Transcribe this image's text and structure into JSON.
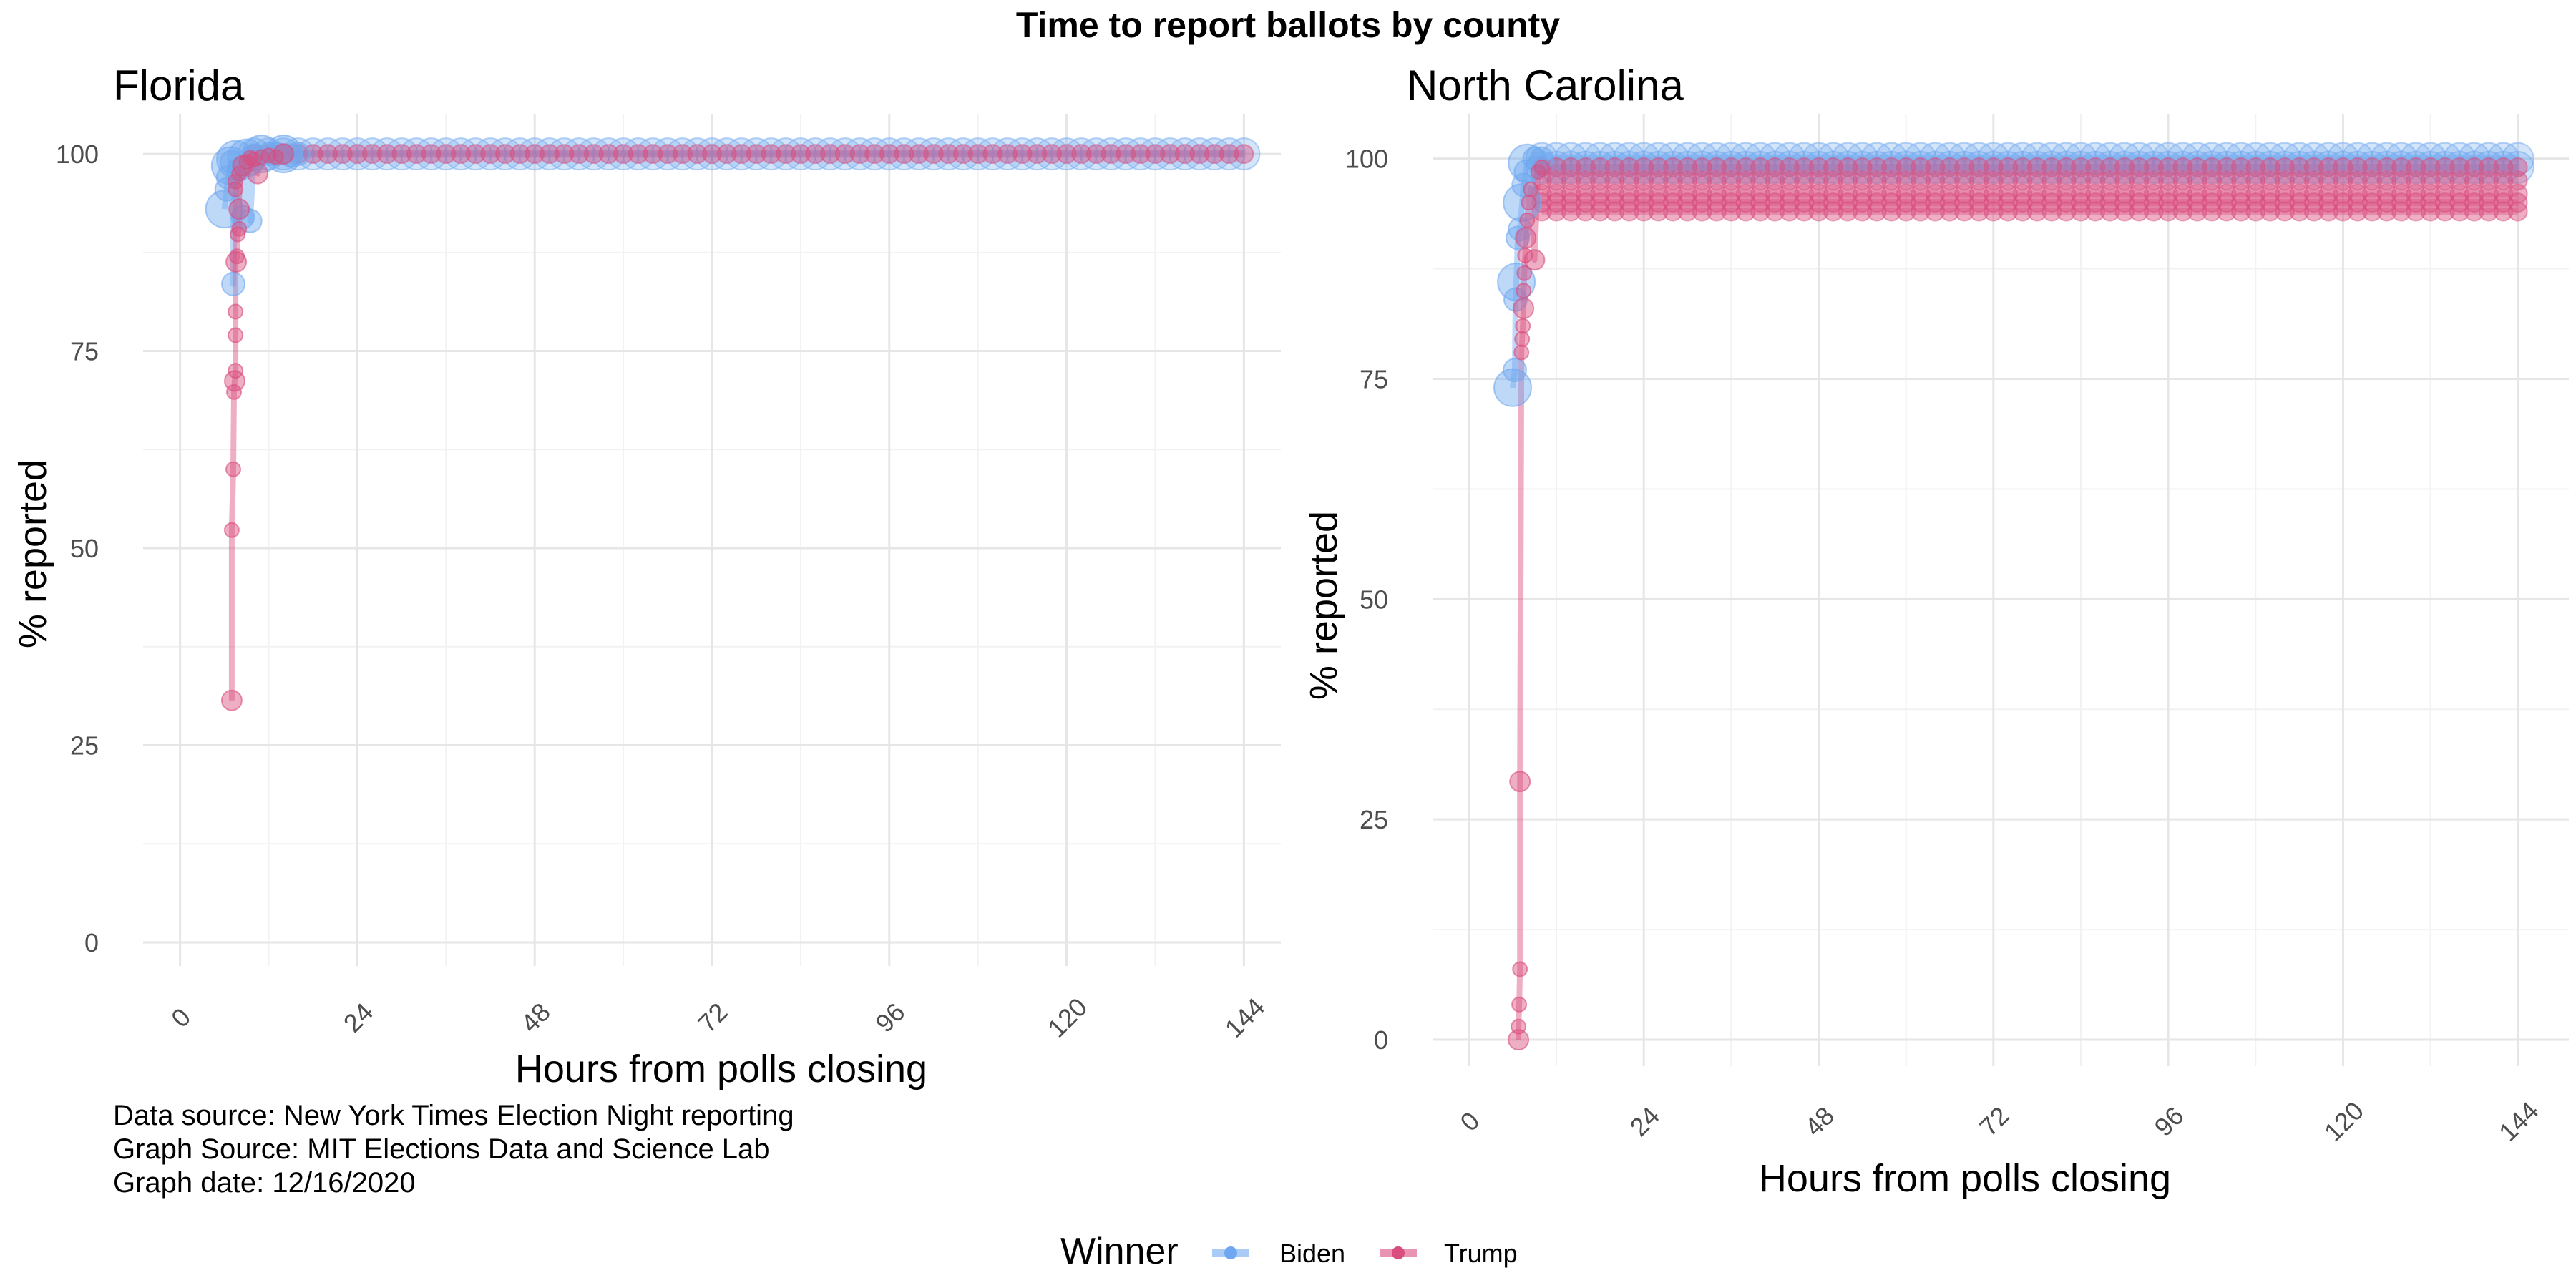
{
  "title": "Time to report ballots by county",
  "legend": {
    "title": "Winner",
    "entries": [
      {
        "name": "Biden",
        "color": "#6fa8f0"
      },
      {
        "name": "Trump",
        "color": "#d94d7f"
      }
    ]
  },
  "caption": {
    "line1": "Data source: New York Times Election Night reporting",
    "line2": "Graph Source: MIT Elections Data and Science Lab",
    "line3": "Graph date: 12/16/2020"
  },
  "colors": {
    "biden": "#6fa8f0",
    "trump": "#d94d7f",
    "grid": "#e6e6e6"
  },
  "chart_data": [
    {
      "type": "scatter",
      "title": "Florida",
      "xlabel": "Hours from polls closing",
      "ylabel": "% reported",
      "xlim": [
        -5,
        149
      ],
      "ylim": [
        -3,
        105
      ],
      "xticks": [
        0,
        24,
        48,
        72,
        96,
        120,
        144
      ],
      "yticks": [
        0,
        25,
        50,
        75,
        100
      ],
      "plateau": {
        "from": 10,
        "to": 144,
        "step": 2,
        "levels": [
          {
            "winner": "Biden",
            "y": 100
          },
          {
            "winner": "Trump",
            "y": 100
          }
        ]
      },
      "series": [
        {
          "name": "Biden",
          "points": [
            [
              6,
              93
            ],
            [
              6.3,
              95.5
            ],
            [
              6.5,
              97
            ],
            [
              6.8,
              98.5
            ],
            [
              7,
              99
            ],
            [
              7.2,
              83.5
            ],
            [
              7.5,
              99.3
            ],
            [
              8,
              98
            ],
            [
              8.5,
              92
            ],
            [
              9,
              99.5
            ],
            [
              9.5,
              91.5
            ],
            [
              10,
              99.8
            ],
            [
              11,
              100
            ],
            [
              12,
              100
            ],
            [
              13,
              100
            ],
            [
              14,
              100
            ],
            [
              15,
              99.8
            ],
            [
              16,
              100
            ]
          ]
        },
        {
          "name": "Trump",
          "points": [
            [
              7,
              30.7
            ],
            [
              7,
              52.3
            ],
            [
              7.2,
              60
            ],
            [
              7.3,
              69.8
            ],
            [
              7.4,
              71.2
            ],
            [
              7.5,
              72.5
            ],
            [
              7.5,
              77
            ],
            [
              7.5,
              80
            ],
            [
              7.6,
              86.3
            ],
            [
              7.7,
              87
            ],
            [
              7.8,
              89.8
            ],
            [
              8,
              90.5
            ],
            [
              8,
              93
            ],
            [
              7.5,
              95.5
            ],
            [
              7.5,
              96.5
            ],
            [
              8,
              97.5
            ],
            [
              8.5,
              98.5
            ],
            [
              9,
              99
            ],
            [
              9.5,
              99.5
            ],
            [
              10,
              99.3
            ],
            [
              10.5,
              97.5
            ],
            [
              11,
              99.6
            ],
            [
              12,
              99.8
            ],
            [
              13,
              99.6
            ],
            [
              14,
              100
            ]
          ]
        }
      ]
    },
    {
      "type": "scatter",
      "title": "North Carolina",
      "xlabel": "Hours from polls closing",
      "ylabel": "% reported",
      "xlim": [
        -5,
        151
      ],
      "ylim": [
        -3,
        105
      ],
      "xticks": [
        0,
        24,
        48,
        72,
        96,
        120,
        144
      ],
      "yticks": [
        0,
        25,
        50,
        75,
        100
      ],
      "plateau": {
        "from": 10,
        "to": 144,
        "step": 2,
        "levels": [
          {
            "winner": "Biden",
            "y": 100
          },
          {
            "winner": "Biden",
            "y": 99
          },
          {
            "winner": "Trump",
            "y": 99
          },
          {
            "winner": "Trump",
            "y": 97.5
          },
          {
            "winner": "Trump",
            "y": 96
          },
          {
            "winner": "Trump",
            "y": 95
          },
          {
            "winner": "Trump",
            "y": 94
          }
        ]
      },
      "series": [
        {
          "name": "Biden",
          "points": [
            [
              6,
              74
            ],
            [
              6.3,
              76
            ],
            [
              6.4,
              84
            ],
            [
              6.5,
              86
            ],
            [
              6.7,
              91
            ],
            [
              7,
              92
            ],
            [
              7.3,
              95
            ],
            [
              7.5,
              97
            ],
            [
              7.8,
              98.5
            ],
            [
              8,
              99.5
            ],
            [
              9,
              100
            ],
            [
              10,
              100
            ]
          ]
        },
        {
          "name": "Trump",
          "points": [
            [
              6.8,
              0
            ],
            [
              6.8,
              1.5
            ],
            [
              6.9,
              4
            ],
            [
              7,
              8
            ],
            [
              7,
              29.3
            ],
            [
              7.2,
              78
            ],
            [
              7.3,
              79.5
            ],
            [
              7.4,
              81
            ],
            [
              7.5,
              83
            ],
            [
              7.5,
              85
            ],
            [
              7.6,
              87
            ],
            [
              7.7,
              89
            ],
            [
              7.8,
              91
            ],
            [
              8,
              93
            ],
            [
              8.2,
              95
            ],
            [
              8.5,
              96.5
            ],
            [
              9,
              88.5
            ],
            [
              9.5,
              98.5
            ],
            [
              10,
              99
            ]
          ]
        }
      ]
    }
  ]
}
